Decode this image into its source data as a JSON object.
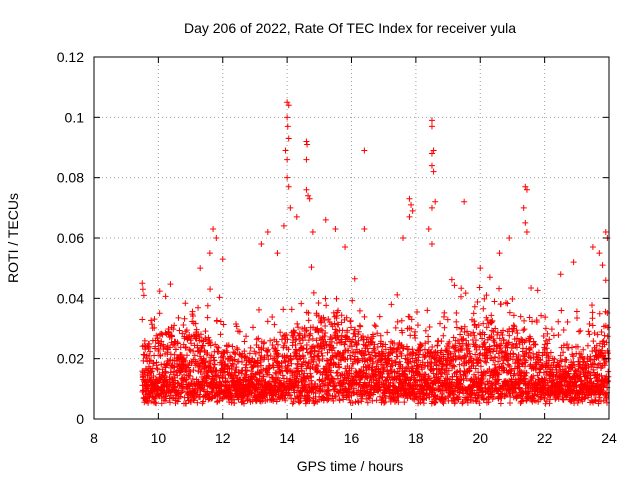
{
  "chart_data": {
    "type": "scatter",
    "title": "Day 206 of 2022, Rate Of TEC Index for receiver yula",
    "xlabel": "GPS time / hours",
    "ylabel": "ROTI / TECUs",
    "xlim": [
      8,
      24
    ],
    "ylim": [
      0,
      0.12
    ],
    "xticks": [
      "8",
      "10",
      "12",
      "14",
      "16",
      "18",
      "20",
      "22",
      "24"
    ],
    "yticks": [
      "0",
      "0.02",
      "0.04",
      "0.06",
      "0.08",
      "0.1",
      "0.12"
    ],
    "grid": true,
    "marker": "plus",
    "color": "#ff0000",
    "points": [
      [
        9.5,
        0.045
      ],
      [
        9.52,
        0.043
      ],
      [
        9.55,
        0.041
      ],
      [
        9.5,
        0.033
      ],
      [
        9.6,
        0.024
      ],
      [
        11.3,
        0.05
      ],
      [
        11.6,
        0.055
      ],
      [
        11.7,
        0.063
      ],
      [
        11.8,
        0.06
      ],
      [
        12.0,
        0.053
      ],
      [
        13.2,
        0.058
      ],
      [
        13.4,
        0.062
      ],
      [
        13.7,
        0.055
      ],
      [
        13.9,
        0.064
      ],
      [
        14.0,
        0.105
      ],
      [
        14.05,
        0.104
      ],
      [
        14.0,
        0.1
      ],
      [
        14.02,
        0.097
      ],
      [
        14.05,
        0.093
      ],
      [
        13.95,
        0.089
      ],
      [
        14.0,
        0.086
      ],
      [
        14.0,
        0.08
      ],
      [
        14.05,
        0.077
      ],
      [
        14.1,
        0.07
      ],
      [
        14.3,
        0.067
      ],
      [
        14.6,
        0.092
      ],
      [
        14.62,
        0.091
      ],
      [
        14.6,
        0.086
      ],
      [
        14.6,
        0.076
      ],
      [
        14.65,
        0.074
      ],
      [
        14.7,
        0.073
      ],
      [
        14.8,
        0.062
      ],
      [
        15.2,
        0.066
      ],
      [
        15.5,
        0.063
      ],
      [
        15.8,
        0.057
      ],
      [
        16.4,
        0.089
      ],
      [
        16.4,
        0.063
      ],
      [
        17.8,
        0.073
      ],
      [
        17.85,
        0.071
      ],
      [
        17.9,
        0.069
      ],
      [
        17.8,
        0.067
      ],
      [
        17.6,
        0.06
      ],
      [
        18.5,
        0.099
      ],
      [
        18.5,
        0.097
      ],
      [
        18.55,
        0.089
      ],
      [
        18.5,
        0.088
      ],
      [
        18.5,
        0.084
      ],
      [
        18.55,
        0.082
      ],
      [
        18.6,
        0.072
      ],
      [
        18.5,
        0.07
      ],
      [
        18.4,
        0.063
      ],
      [
        18.5,
        0.058
      ],
      [
        19.5,
        0.072
      ],
      [
        20.0,
        0.05
      ],
      [
        20.3,
        0.047
      ],
      [
        20.6,
        0.055
      ],
      [
        20.9,
        0.06
      ],
      [
        21.4,
        0.077
      ],
      [
        21.45,
        0.076
      ],
      [
        21.35,
        0.07
      ],
      [
        21.4,
        0.065
      ],
      [
        21.45,
        0.062
      ],
      [
        22.5,
        0.048
      ],
      [
        22.9,
        0.052
      ],
      [
        23.5,
        0.057
      ],
      [
        23.7,
        0.055
      ],
      [
        23.9,
        0.062
      ],
      [
        23.95,
        0.06
      ],
      [
        23.8,
        0.051
      ],
      [
        23.9,
        0.046
      ]
    ]
  }
}
